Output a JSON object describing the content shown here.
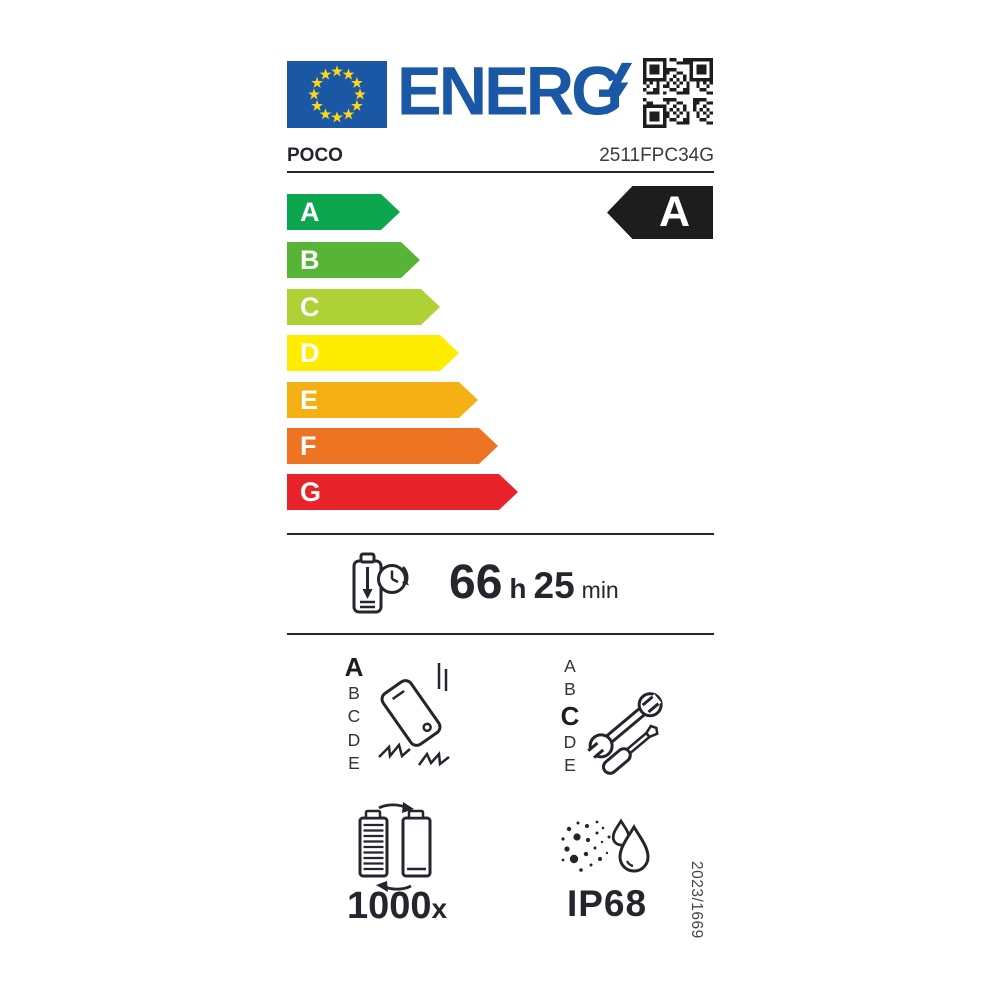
{
  "header": {
    "energy_wordmark": "ENERG",
    "eu_flag_colors": {
      "field": "#1a57a5",
      "stars": "#ffd617"
    },
    "accent_blue": "#1a57a5"
  },
  "product": {
    "brand": "POCO",
    "model": "2511FPC34G"
  },
  "scale": {
    "grades": [
      {
        "letter": "A",
        "color": "#0ca64f"
      },
      {
        "letter": "B",
        "color": "#58b437"
      },
      {
        "letter": "C",
        "color": "#aed136"
      },
      {
        "letter": "D",
        "color": "#ffed00"
      },
      {
        "letter": "E",
        "color": "#f5b114"
      },
      {
        "letter": "F",
        "color": "#ee7322"
      },
      {
        "letter": "G",
        "color": "#e9232a"
      }
    ],
    "rated": {
      "letter": "A",
      "color": "#1d1d1d"
    }
  },
  "battery_endurance": {
    "hours": "66",
    "hours_unit": "h",
    "minutes": "25",
    "minutes_unit": "min"
  },
  "free_fall_class": {
    "options": [
      "A",
      "B",
      "C",
      "D",
      "E"
    ],
    "rated": "A"
  },
  "repairability_class": {
    "options": [
      "A",
      "B",
      "C",
      "D",
      "E"
    ],
    "rated": "C"
  },
  "battery_cycles": {
    "value": "1000",
    "unit": "x"
  },
  "ingress_protection": "IP68",
  "regulation_reference": "2023/1669"
}
